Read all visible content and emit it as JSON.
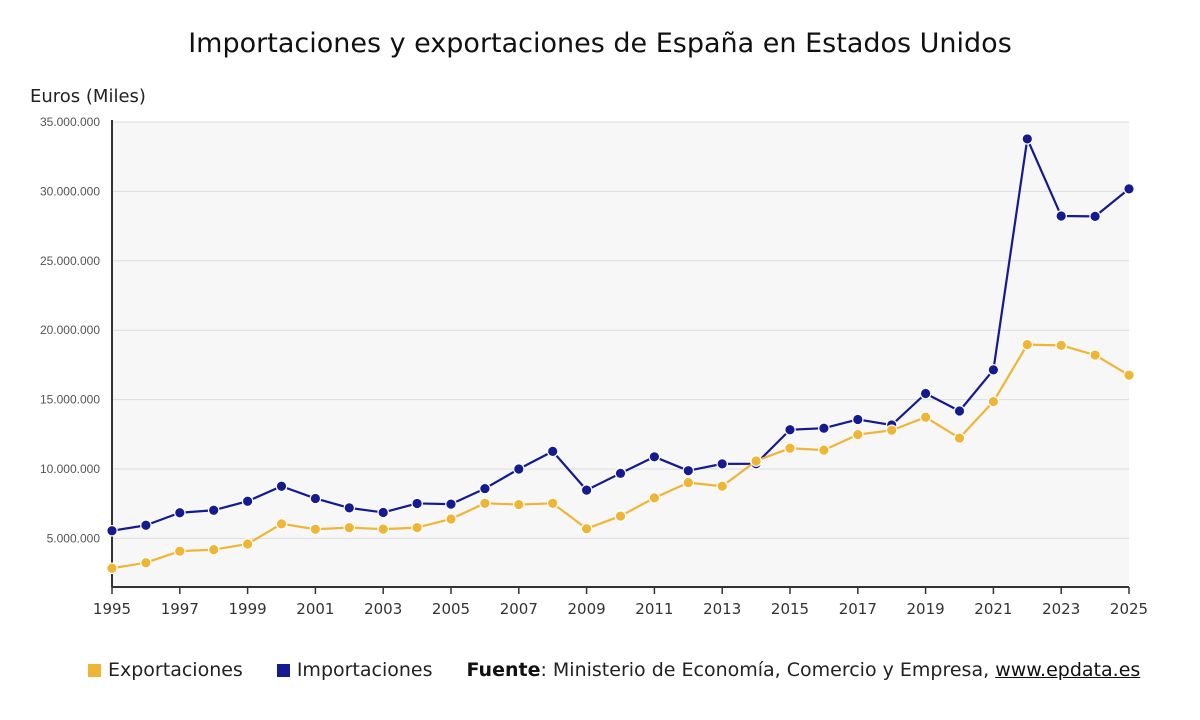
{
  "title": "Importaciones y exportaciones de España en Estados Unidos",
  "chart_data": {
    "type": "line",
    "title": "Importaciones y exportaciones de España en Estados Unidos",
    "ylabel": "Euros (Miles)",
    "xlabel": "",
    "ylim": [
      1500000,
      35000000
    ],
    "x": [
      1995,
      1996,
      1997,
      1998,
      1999,
      2000,
      2001,
      2002,
      2003,
      2004,
      2005,
      2006,
      2007,
      2008,
      2009,
      2010,
      2011,
      2012,
      2013,
      2014,
      2015,
      2016,
      2017,
      2018,
      2019,
      2020,
      2021,
      2022,
      2023,
      2024,
      2025
    ],
    "xticks": [
      "1995",
      "1997",
      "1999",
      "2001",
      "2003",
      "2005",
      "2007",
      "2009",
      "2011",
      "2013",
      "2015",
      "2017",
      "2019",
      "2021",
      "2023",
      "2025"
    ],
    "yticks": [
      {
        "value": 5000000,
        "label": "5.000.000"
      },
      {
        "value": 10000000,
        "label": "10.000.000"
      },
      {
        "value": 15000000,
        "label": "15.000.000"
      },
      {
        "value": 20000000,
        "label": "20.000.000"
      },
      {
        "value": 25000000,
        "label": "25.000.000"
      },
      {
        "value": 30000000,
        "label": "30.000.000"
      },
      {
        "value": 35000000,
        "label": "35.000.000"
      }
    ],
    "grid": true,
    "legend_position": "bottom-left",
    "series": [
      {
        "name": "Importaciones",
        "color": "#141a8f",
        "values": [
          5550000,
          5950000,
          6850000,
          7030000,
          7680000,
          8760000,
          7880000,
          7200000,
          6870000,
          7520000,
          7470000,
          8590000,
          10000000,
          11270000,
          8480000,
          9690000,
          10880000,
          9880000,
          10370000,
          10380000,
          12830000,
          12940000,
          13570000,
          13170000,
          15440000,
          14180000,
          17140000,
          33780000,
          28230000,
          28200000,
          30180000
        ]
      },
      {
        "name": "Exportaciones",
        "color": "#f0b535",
        "values": [
          2850000,
          3250000,
          4080000,
          4190000,
          4600000,
          6050000,
          5660000,
          5780000,
          5670000,
          5780000,
          6400000,
          7530000,
          7440000,
          7530000,
          5700000,
          6610000,
          7920000,
          9020000,
          8760000,
          10580000,
          11500000,
          11360000,
          12480000,
          12790000,
          13730000,
          12230000,
          14860000,
          18960000,
          18910000,
          18210000,
          16760000
        ]
      }
    ]
  },
  "legend": {
    "items": [
      {
        "label": "Exportaciones",
        "color": "#f0b535"
      },
      {
        "label": "Importaciones",
        "color": "#141a8f"
      }
    ]
  },
  "source": {
    "label": "Fuente",
    "separator": ":",
    "text": " Ministerio de Economía, Comercio y Empresa, ",
    "link": "www.epdata.es"
  }
}
